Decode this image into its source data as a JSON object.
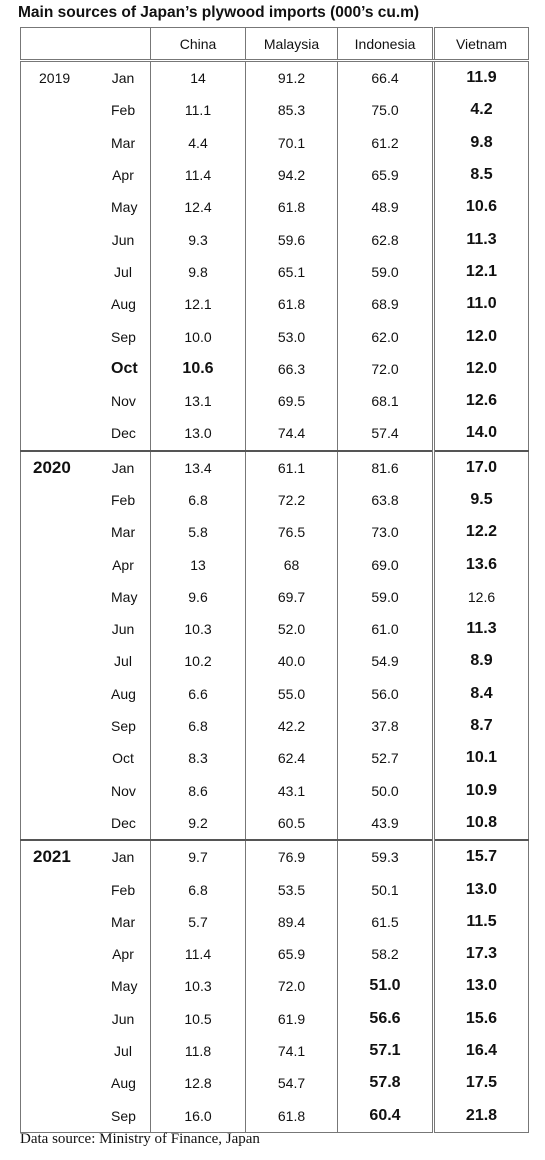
{
  "title": "Main sources of Japan’s plywood imports (000’s cu.m)",
  "header": [
    "China",
    "Malaysia",
    "Indonesia",
    "Vietnam"
  ],
  "groups": [
    {
      "year": "2019",
      "rows": [
        [
          "Jan",
          "14",
          "91.2",
          "66.4",
          "11.9"
        ],
        [
          "Feb",
          "11.1",
          "85.3",
          "75.0",
          "4.2"
        ],
        [
          "Mar",
          "4.4",
          "70.1",
          "61.2",
          "9.8"
        ],
        [
          "Apr",
          "11.4",
          "94.2",
          "65.9",
          "8.5"
        ],
        [
          "May",
          "12.4",
          "61.8",
          "48.9",
          "10.6"
        ],
        [
          "Jun",
          "9.3",
          "59.6",
          "62.8",
          "11.3"
        ],
        [
          "Jul",
          "9.8",
          "65.1",
          "59.0",
          "12.1"
        ],
        [
          "Aug",
          "12.1",
          "61.8",
          "68.9",
          "11.0"
        ],
        [
          "Sep",
          "10.0",
          "53.0",
          "62.0",
          "12.0"
        ],
        [
          "Oct",
          "10.6",
          "66.3",
          "72.0",
          "12.0"
        ],
        [
          "Nov",
          "13.1",
          "69.5",
          "68.1",
          "12.6"
        ],
        [
          "Dec",
          "13.0",
          "74.4",
          "57.4",
          "14.0"
        ]
      ]
    },
    {
      "year": "2020",
      "rows": [
        [
          "Jan",
          "13.4",
          "61.1",
          "81.6",
          "17.0"
        ],
        [
          "Feb",
          "6.8",
          "72.2",
          "63.8",
          "9.5"
        ],
        [
          "Mar",
          "5.8",
          "76.5",
          "73.0",
          "12.2"
        ],
        [
          "Apr",
          "13",
          "68",
          "69.0",
          "13.6"
        ],
        [
          "May",
          "9.6",
          "69.7",
          "59.0",
          "12.6"
        ],
        [
          "Jun",
          "10.3",
          "52.0",
          "61.0",
          "11.3"
        ],
        [
          "Jul",
          "10.2",
          "40.0",
          "54.9",
          "8.9"
        ],
        [
          "Aug",
          "6.6",
          "55.0",
          "56.0",
          "8.4"
        ],
        [
          "Sep",
          "6.8",
          "42.2",
          "37.8",
          "8.7"
        ],
        [
          "Oct",
          "8.3",
          "62.4",
          "52.7",
          "10.1"
        ],
        [
          "Nov",
          "8.6",
          "43.1",
          "50.0",
          "10.9"
        ],
        [
          "Dec",
          "9.2",
          "60.5",
          "43.9",
          "10.8"
        ]
      ]
    },
    {
      "year": "2021",
      "rows": [
        [
          "Jan",
          "9.7",
          "76.9",
          "59.3",
          "15.7"
        ],
        [
          "Feb",
          "6.8",
          "53.5",
          "50.1",
          "13.0"
        ],
        [
          "Mar",
          "5.7",
          "89.4",
          "61.5",
          "11.5"
        ],
        [
          "Apr",
          "11.4",
          "65.9",
          "58.2",
          "17.3"
        ],
        [
          "May",
          "10.3",
          "72.0",
          "51.0",
          "13.0"
        ],
        [
          "Jun",
          "10.5",
          "61.9",
          "56.6",
          "15.6"
        ],
        [
          "Jul",
          "11.8",
          "74.1",
          "57.1",
          "16.4"
        ],
        [
          "Aug",
          "12.8",
          "54.7",
          "57.8",
          "17.5"
        ],
        [
          "Sep",
          "16.0",
          "61.8",
          "60.4",
          "21.8"
        ]
      ]
    }
  ],
  "source": "Data source: Ministry of Finance, Japan"
}
